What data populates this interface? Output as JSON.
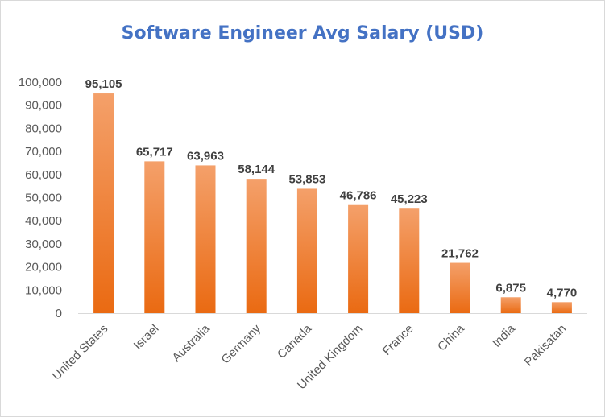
{
  "chart_data": {
    "type": "bar",
    "title": "Software Engineer Avg Salary (USD)",
    "categories": [
      "United States",
      "Israel",
      "Australia",
      "Germany",
      "Canada",
      "United Kingdom",
      "France",
      "China",
      "India",
      "Pakisatan"
    ],
    "values": [
      95105,
      65717,
      63963,
      58144,
      53853,
      46786,
      45223,
      21762,
      6875,
      4770
    ],
    "value_labels": [
      "95,105",
      "65,717",
      "63,963",
      "58,144",
      "53,853",
      "46,786",
      "45,223",
      "21,762",
      "6,875",
      "4,770"
    ],
    "yticks": [
      "0",
      "10,000",
      "20,000",
      "30,000",
      "40,000",
      "50,000",
      "60,000",
      "70,000",
      "80,000",
      "90,000",
      "100,000"
    ],
    "ylim": [
      0,
      100000
    ],
    "xlabel": "",
    "ylabel": "",
    "grid": false,
    "legend": "none",
    "colors": {
      "bar_top": "#f4a06a",
      "bar_bottom": "#ea6a12",
      "title": "#4472c4",
      "axis_text": "#595959"
    }
  }
}
